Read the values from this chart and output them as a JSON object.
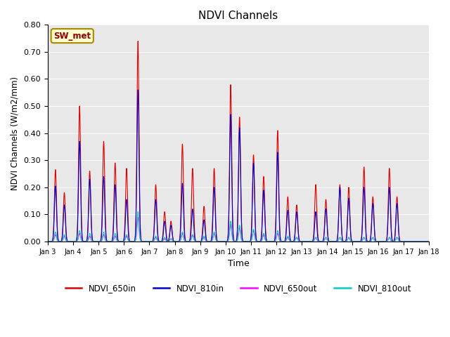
{
  "title": "NDVI Channels",
  "xlabel": "Time",
  "ylabel": "NDVI Channels (W/m2/mm)",
  "ylim": [
    0.0,
    0.8
  ],
  "yticks": [
    0.0,
    0.1,
    0.2,
    0.3,
    0.4,
    0.5,
    0.6,
    0.7,
    0.8
  ],
  "xtick_labels": [
    "Jan 3",
    "Jan 4",
    "Jan 5",
    "Jan 6",
    "Jan 7",
    "Jan 8",
    "Jan 9",
    "Jan 10",
    "Jan 11",
    "Jan 12",
    "Jan 13",
    "Jan 14",
    "Jan 15",
    "Jan 16",
    "Jan 17",
    "Jan 18"
  ],
  "annotation_text": "SW_met",
  "background_color": "#e8e8e8",
  "line_colors": {
    "NDVI_650in": "#dd0000",
    "NDVI_810in": "#0000cc",
    "NDVI_650out": "#ff00ff",
    "NDVI_810out": "#00cccc"
  },
  "spikes": [
    {
      "t": 0.3,
      "r": 0.265,
      "b": 0.205,
      "m": 0.025,
      "c": 0.035
    },
    {
      "t": 0.65,
      "r": 0.18,
      "b": 0.135,
      "m": 0.02,
      "c": 0.025
    },
    {
      "t": 1.25,
      "r": 0.5,
      "b": 0.37,
      "m": 0.03,
      "c": 0.04
    },
    {
      "t": 1.65,
      "r": 0.26,
      "b": 0.23,
      "m": 0.02,
      "c": 0.03
    },
    {
      "t": 2.2,
      "r": 0.37,
      "b": 0.24,
      "m": 0.025,
      "c": 0.035
    },
    {
      "t": 2.65,
      "r": 0.29,
      "b": 0.21,
      "m": 0.02,
      "c": 0.03
    },
    {
      "t": 3.1,
      "r": 0.27,
      "b": 0.155,
      "m": 0.02,
      "c": 0.025
    },
    {
      "t": 3.55,
      "r": 0.74,
      "b": 0.56,
      "m": 0.09,
      "c": 0.11
    },
    {
      "t": 4.25,
      "r": 0.21,
      "b": 0.155,
      "m": 0.015,
      "c": 0.02
    },
    {
      "t": 4.6,
      "r": 0.11,
      "b": 0.075,
      "m": 0.01,
      "c": 0.015
    },
    {
      "t": 4.85,
      "r": 0.075,
      "b": 0.06,
      "m": 0.01,
      "c": 0.01
    },
    {
      "t": 5.3,
      "r": 0.36,
      "b": 0.215,
      "m": 0.03,
      "c": 0.035
    },
    {
      "t": 5.7,
      "r": 0.27,
      "b": 0.12,
      "m": 0.025,
      "c": 0.025
    },
    {
      "t": 6.15,
      "r": 0.13,
      "b": 0.08,
      "m": 0.015,
      "c": 0.02
    },
    {
      "t": 6.55,
      "r": 0.27,
      "b": 0.2,
      "m": 0.03,
      "c": 0.035
    },
    {
      "t": 7.2,
      "r": 0.58,
      "b": 0.47,
      "m": 0.065,
      "c": 0.075
    },
    {
      "t": 7.55,
      "r": 0.46,
      "b": 0.42,
      "m": 0.05,
      "c": 0.06
    },
    {
      "t": 8.1,
      "r": 0.32,
      "b": 0.29,
      "m": 0.04,
      "c": 0.045
    },
    {
      "t": 8.5,
      "r": 0.24,
      "b": 0.19,
      "m": 0.025,
      "c": 0.03
    },
    {
      "t": 9.05,
      "r": 0.41,
      "b": 0.33,
      "m": 0.03,
      "c": 0.04
    },
    {
      "t": 9.45,
      "r": 0.165,
      "b": 0.115,
      "m": 0.015,
      "c": 0.02
    },
    {
      "t": 9.8,
      "r": 0.135,
      "b": 0.11,
      "m": 0.015,
      "c": 0.015
    },
    {
      "t": 10.55,
      "r": 0.21,
      "b": 0.11,
      "m": 0.015,
      "c": 0.015
    },
    {
      "t": 10.95,
      "r": 0.155,
      "b": 0.12,
      "m": 0.015,
      "c": 0.015
    },
    {
      "t": 11.5,
      "r": 0.21,
      "b": 0.2,
      "m": 0.015,
      "c": 0.015
    },
    {
      "t": 11.85,
      "r": 0.2,
      "b": 0.16,
      "m": 0.015,
      "c": 0.015
    },
    {
      "t": 12.45,
      "r": 0.275,
      "b": 0.2,
      "m": 0.015,
      "c": 0.015
    },
    {
      "t": 12.8,
      "r": 0.165,
      "b": 0.14,
      "m": 0.015,
      "c": 0.015
    },
    {
      "t": 13.45,
      "r": 0.27,
      "b": 0.2,
      "m": 0.015,
      "c": 0.015
    },
    {
      "t": 13.75,
      "r": 0.165,
      "b": 0.14,
      "m": 0.015,
      "c": 0.015
    }
  ]
}
